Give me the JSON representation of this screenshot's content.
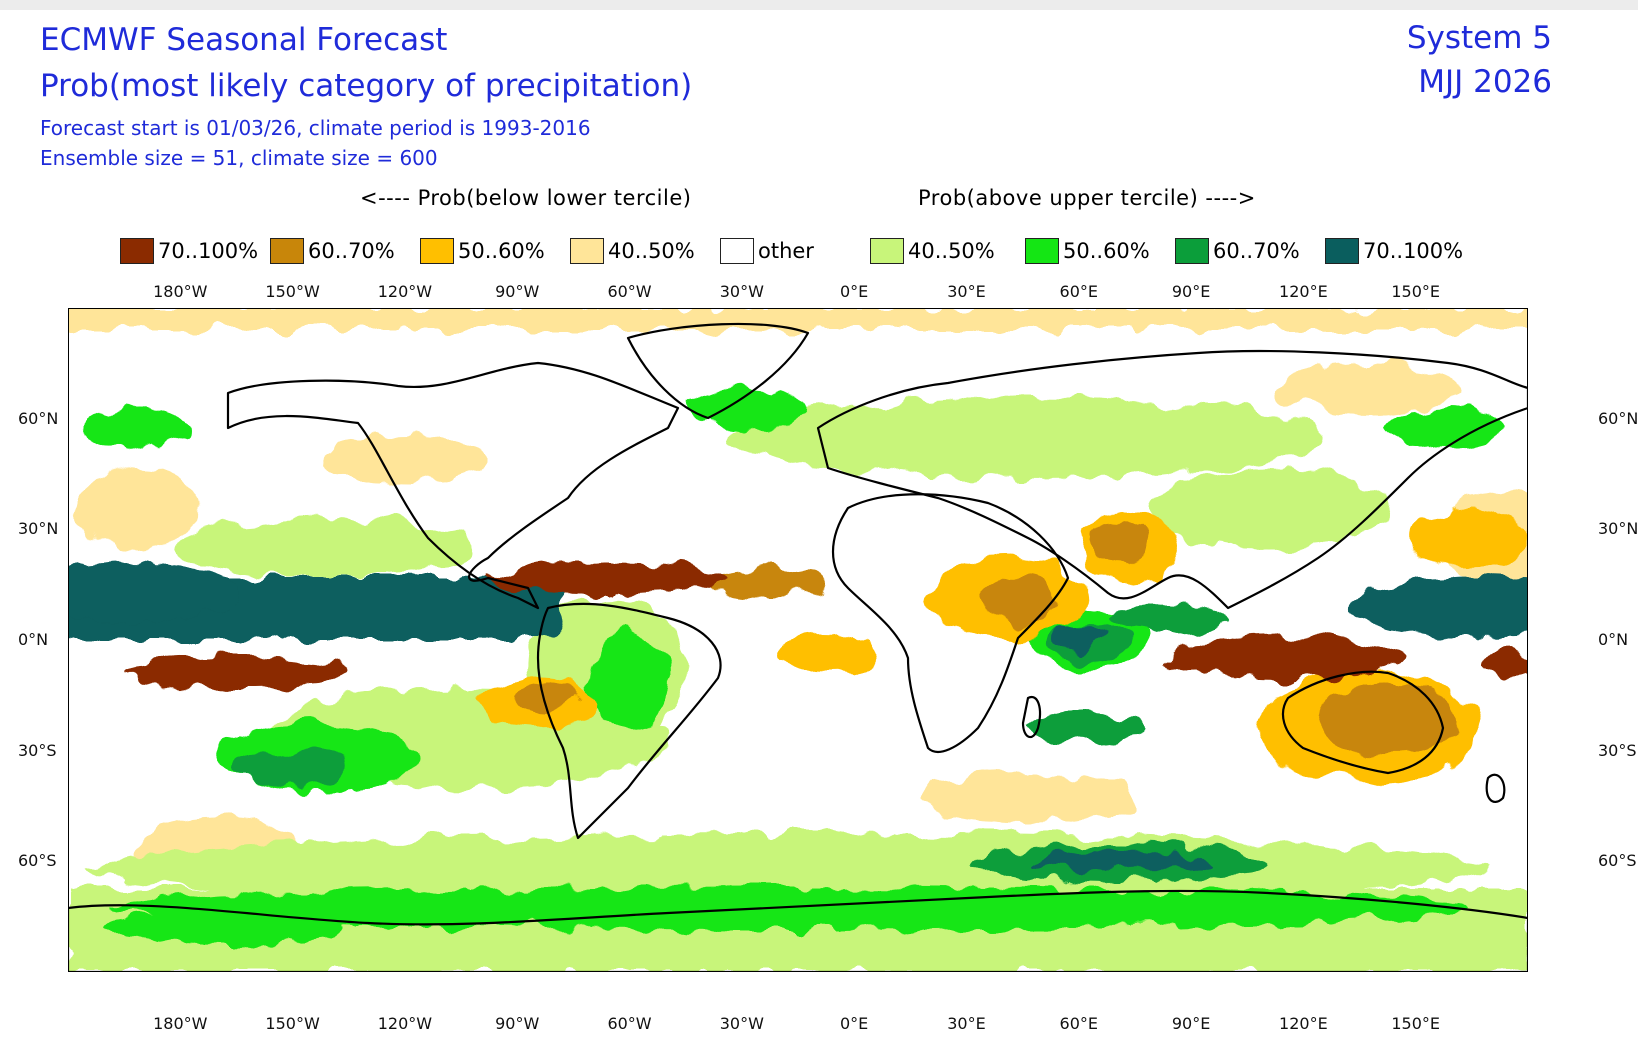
{
  "header": {
    "title": "ECMWF Seasonal Forecast",
    "subtitle": "Prob(most likely category of precipitation)",
    "info_line1": "Forecast start is 01/03/26, climate period is 1993-2016",
    "info_line2": "Ensemble size = 51, climate size = 600",
    "system": "System 5",
    "season": "MJJ 2026"
  },
  "legend": {
    "below_heading": "<---- Prob(below lower tercile)",
    "above_heading": "Prob(above upper tercile) ---->",
    "items": [
      {
        "label": "70..100%",
        "color": "#8b2b00"
      },
      {
        "label": "60..70%",
        "color": "#c8860a"
      },
      {
        "label": "50..60%",
        "color": "#ffbf00"
      },
      {
        "label": "40..50%",
        "color": "#ffe599"
      },
      {
        "label": "other",
        "color": "#ffffff"
      },
      {
        "label": "40..50%",
        "color": "#c8f57a"
      },
      {
        "label": "50..60%",
        "color": "#14e614"
      },
      {
        "label": "60..70%",
        "color": "#0b9e3a"
      },
      {
        "label": "70..100%",
        "color": "#0a5e5e"
      }
    ]
  },
  "axes": {
    "lon_ticks": [
      "180°W",
      "150°W",
      "120°W",
      "90°W",
      "60°W",
      "30°W",
      "0°E",
      "30°E",
      "60°E",
      "90°E",
      "120°E",
      "150°E"
    ],
    "lat_ticks": [
      "60°N",
      "30°N",
      "0°N",
      "30°S",
      "60°S"
    ]
  },
  "map": {
    "projection": "equirectangular",
    "lon_range": [
      -210,
      180
    ],
    "lat_range": [
      -90,
      90
    ],
    "grid": false
  }
}
